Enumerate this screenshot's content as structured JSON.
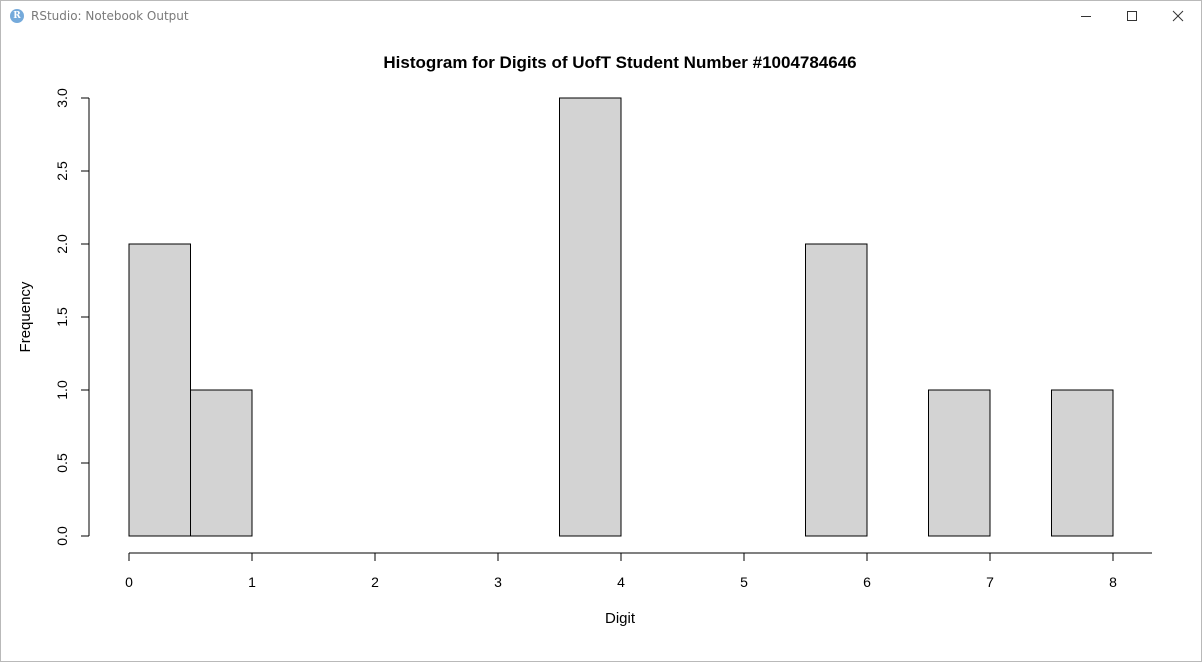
{
  "window": {
    "title": "RStudio: Notebook Output",
    "icon": "R",
    "controls": [
      "minimize-icon",
      "maximize-icon",
      "close-icon"
    ]
  },
  "chart_data": {
    "type": "bar",
    "title": "Histogram for Digits of UofT Student Number #1004784646",
    "xlabel": "Digit",
    "ylabel": "Frequency",
    "bins": [
      {
        "from": 0,
        "to": 0.5,
        "count": 2
      },
      {
        "from": 0.5,
        "to": 1,
        "count": 1
      },
      {
        "from": 1,
        "to": 1.5,
        "count": 0
      },
      {
        "from": 1.5,
        "to": 2,
        "count": 0
      },
      {
        "from": 2,
        "to": 2.5,
        "count": 0
      },
      {
        "from": 2.5,
        "to": 3,
        "count": 0
      },
      {
        "from": 3,
        "to": 3.5,
        "count": 0
      },
      {
        "from": 3.5,
        "to": 4,
        "count": 3
      },
      {
        "from": 4,
        "to": 4.5,
        "count": 0
      },
      {
        "from": 4.5,
        "to": 5,
        "count": 0
      },
      {
        "from": 5,
        "to": 5.5,
        "count": 0
      },
      {
        "from": 5.5,
        "to": 6,
        "count": 2
      },
      {
        "from": 6,
        "to": 6.5,
        "count": 0
      },
      {
        "from": 6.5,
        "to": 7,
        "count": 1
      },
      {
        "from": 7,
        "to": 7.5,
        "count": 0
      },
      {
        "from": 7.5,
        "to": 8,
        "count": 1
      }
    ],
    "xlim": [
      0,
      8
    ],
    "ylim": [
      0,
      3
    ],
    "xticks": [
      "0",
      "1",
      "2",
      "3",
      "4",
      "5",
      "6",
      "7",
      "8"
    ],
    "yticks": [
      "0.0",
      "0.5",
      "1.0",
      "1.5",
      "2.0",
      "2.5",
      "3.0"
    ],
    "bar_fill": "#d3d3d3",
    "bar_stroke": "#000000",
    "grid": false
  }
}
